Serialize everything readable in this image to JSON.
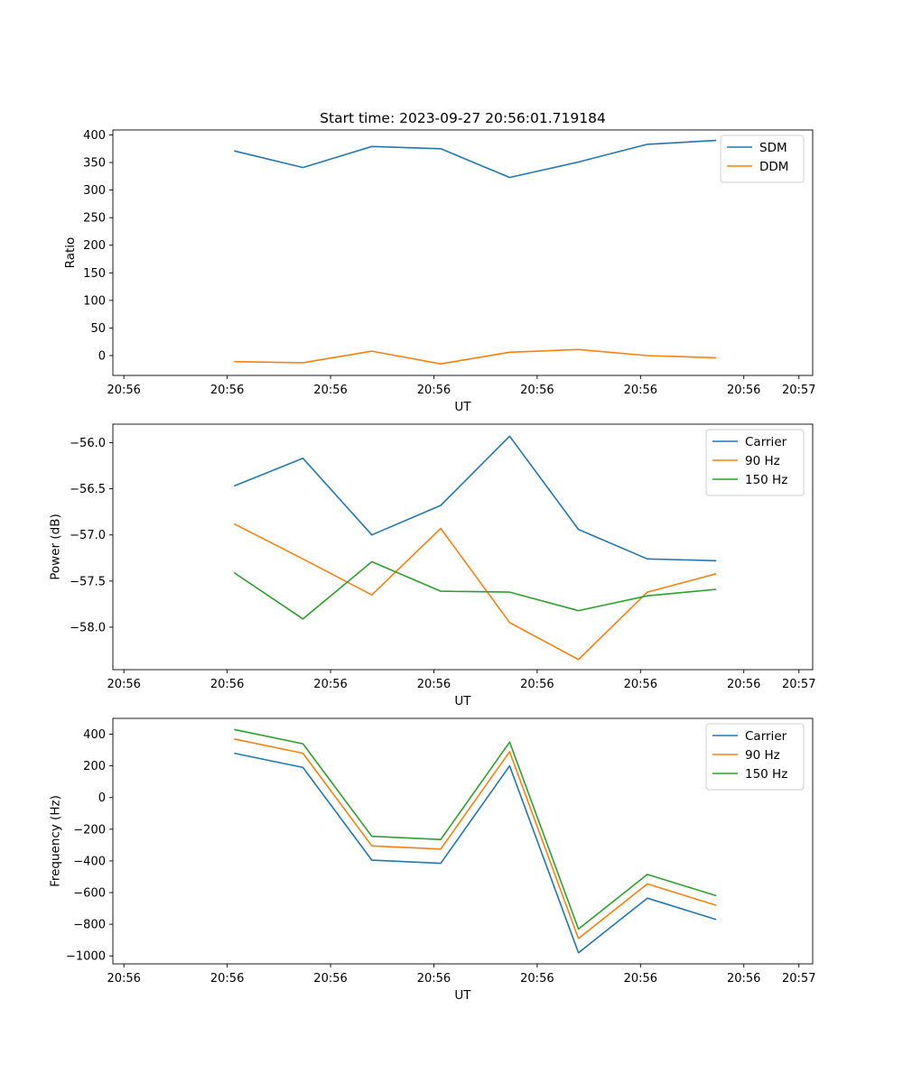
{
  "chart_data": {
    "type": "line",
    "title": "Start time: 2023-09-27 20:56:01.719184",
    "x": [
      1,
      2,
      3,
      4,
      5,
      6,
      7,
      8
    ],
    "xlim": [
      -0.76,
      9.4
    ],
    "xticks": [
      -0.6,
      0.9,
      2.4,
      3.9,
      5.4,
      6.9,
      8.4,
      9.2
    ],
    "xtick_labels": [
      "20:56",
      "20:56",
      "20:56",
      "20:56",
      "20:56",
      "20:56",
      "20:56",
      "20:57"
    ],
    "colors": {
      "blue": "#1f77b4",
      "orange": "#ff7f0e",
      "green": "#2ca02c"
    },
    "subplots": [
      {
        "name": "ratio",
        "xlabel": "UT",
        "ylabel": "Ratio",
        "ylim": [
          -36,
          409
        ],
        "yticks": [
          0,
          50,
          100,
          150,
          200,
          250,
          300,
          350,
          400
        ],
        "ytick_labels": [
          "0",
          "50",
          "100",
          "150",
          "200",
          "250",
          "300",
          "350",
          "400"
        ],
        "legend": "top-right",
        "series": [
          {
            "name": "SDM",
            "color": "#1f77b4",
            "values": [
              371,
              341,
              379,
              375,
              323,
              351,
              383,
              390
            ]
          },
          {
            "name": "DDM",
            "color": "#ff7f0e",
            "values": [
              -11,
              -13,
              8,
              -15,
              6,
              11,
              0,
              -4
            ]
          }
        ]
      },
      {
        "name": "power",
        "xlabel": "UT",
        "ylabel": "Power (dB)",
        "ylim": [
          -58.46,
          -55.8
        ],
        "yticks": [
          -58.0,
          -57.5,
          -57.0,
          -56.5,
          -56.0
        ],
        "ytick_labels": [
          "−58.0",
          "−57.5",
          "−57.0",
          "−56.5",
          "−56.0"
        ],
        "legend": "top-right",
        "series": [
          {
            "name": "Carrier",
            "color": "#1f77b4",
            "values": [
              -56.47,
              -56.17,
              -57.0,
              -56.68,
              -55.93,
              -56.94,
              -57.26,
              -57.28
            ]
          },
          {
            "name": "90 Hz",
            "color": "#ff7f0e",
            "values": [
              -56.88,
              -57.26,
              -57.65,
              -56.93,
              -57.95,
              -58.35,
              -57.62,
              -57.42
            ]
          },
          {
            "name": "150 Hz",
            "color": "#2ca02c",
            "values": [
              -57.41,
              -57.91,
              -57.29,
              -57.61,
              -57.62,
              -57.82,
              -57.66,
              -57.59
            ]
          }
        ]
      },
      {
        "name": "frequency",
        "xlabel": "UT",
        "ylabel": "Frequency (Hz)",
        "ylim": [
          -1050,
          500
        ],
        "yticks": [
          -1000,
          -800,
          -600,
          -400,
          -200,
          0,
          200,
          400
        ],
        "ytick_labels": [
          "−1000",
          "−800",
          "−600",
          "−400",
          "−200",
          "0",
          "200",
          "400"
        ],
        "legend": "top-right",
        "series": [
          {
            "name": "Carrier",
            "color": "#1f77b4",
            "values": [
              280,
              190,
              -395,
              -415,
              200,
              -980,
              -635,
              -770
            ]
          },
          {
            "name": "90 Hz",
            "color": "#ff7f0e",
            "values": [
              370,
              280,
              -305,
              -325,
              290,
              -890,
              -545,
              -680
            ]
          },
          {
            "name": "150 Hz",
            "color": "#2ca02c",
            "values": [
              430,
              340,
              -245,
              -265,
              350,
              -830,
              -485,
              -620
            ]
          }
        ]
      }
    ]
  }
}
